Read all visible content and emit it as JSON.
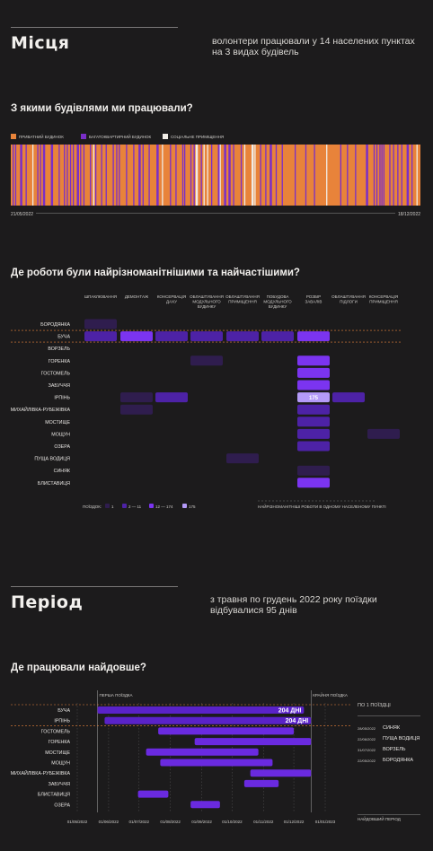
{
  "places": {
    "title": "Місця",
    "description_line1": "волонтери працювали у 14 населених пунктах",
    "description_line2": "на 3 видах будівель"
  },
  "buildings": {
    "question": "З якими будівлями ми працювали?",
    "legend": [
      {
        "label": "ПРИВАТНИЙ БУДИНОК",
        "color": "#e8833a"
      },
      {
        "label": "БАГАТОКВАРТИРНИЙ БУДИНОК",
        "color": "#7a2ec8"
      },
      {
        "label": "СОЦІАЛЬНЕ ПРИМІЩЕННЯ",
        "color": "#f0ece6"
      }
    ],
    "start_date": "21/05/2022",
    "end_date": "18/12/2022"
  },
  "works": {
    "question": "Де роботи були найрізноманітнішими та найчастішими?",
    "legend_title": "ПОЇЗДОК:",
    "legend_levels": [
      "1",
      "2 — 11",
      "12 — 174",
      "175"
    ],
    "legend_note": "НАЙРІЗНОМАНІТНІШІ РОБОТИ В ОДНОМУ НАСЕЛЕНОМУ ПУНКТІ"
  },
  "period": {
    "title": "Період",
    "description_line1": "з травня по грудень 2022 року поїздки",
    "description_line2": "відбувалися 95 днів"
  },
  "longest": {
    "question": "Де працювали найдовше?",
    "first_trip_label": "ПЕРША ПОЇЗДКА",
    "last_trip_label": "КРАЙНЯ ПОЇЗДКА",
    "one_trip_title": "ПО 1 ПОЇЗДЦІ",
    "one_trip_items": [
      {
        "date": "28/05/2022",
        "place": "СИНЯК"
      },
      {
        "date": "22/06/2022",
        "place": "ПУЩА ВОДИЦЯ"
      },
      {
        "date": "31/07/2022",
        "place": "ВОРЗЕЛЬ"
      },
      {
        "date": "22/05/2022",
        "place": "БОРОДЯНКА"
      }
    ],
    "longest_period_label": "НАЙДОВШИЙ ПЕРІОД"
  },
  "chart_data": [
    {
      "type": "heatmap",
      "title": "Де роботи були найрізноманітнішими та найчастішими?",
      "columns": [
        "ШПАКЛЮВАННЯ",
        "ДЕМОНТАЖ",
        "КОНСЕРВАЦІЯ ДАХУ",
        "ОБЛАШТУВАННЯ МОДУЛЬНОГО БУДИНКУ",
        "ОБЛАШТУВАННЯ ПРИМІЩЕННЯ",
        "ПОБУДОВА МОДУЛЬНОГО БУДИНКУ",
        "РОЗБІР ЗАВАЛІВ",
        "ОБЛАШТУВАННЯ ПІДЛОГИ",
        "КОНСЕРВАЦІЯ ПРИМІЩЕННЯ"
      ],
      "rows": [
        "БОРОДЯНКА",
        "БУЧА",
        "ВОРЗЕЛЬ",
        "ГОРЕНКА",
        "ГОСТОМЕЛЬ",
        "ЗАБУЧЧЯ",
        "ІРПІНЬ",
        "МИХАЙЛІВКА-РУБЕЖІВКА",
        "МОСТИЩЕ",
        "МОЩУН",
        "ОЗЕРА",
        "ПУЩА ВОДИЦЯ",
        "СИНЯК",
        "БЛИСТАВИЦЯ"
      ],
      "cells": [
        {
          "row": 0,
          "col": 0,
          "level": 1
        },
        {
          "row": 1,
          "col": 0,
          "level": 2
        },
        {
          "row": 1,
          "col": 1,
          "level": 3
        },
        {
          "row": 1,
          "col": 2,
          "level": 2
        },
        {
          "row": 1,
          "col": 3,
          "level": 2
        },
        {
          "row": 1,
          "col": 4,
          "level": 2
        },
        {
          "row": 1,
          "col": 5,
          "level": 2
        },
        {
          "row": 1,
          "col": 6,
          "level": 3
        },
        {
          "row": 3,
          "col": 3,
          "level": 1
        },
        {
          "row": 3,
          "col": 6,
          "level": 3
        },
        {
          "row": 4,
          "col": 6,
          "level": 3
        },
        {
          "row": 5,
          "col": 6,
          "level": 3
        },
        {
          "row": 6,
          "col": 1,
          "level": 1
        },
        {
          "row": 6,
          "col": 2,
          "level": 2
        },
        {
          "row": 6,
          "col": 6,
          "level": 4,
          "label": "175"
        },
        {
          "row": 6,
          "col": 7,
          "level": 2
        },
        {
          "row": 7,
          "col": 1,
          "level": 1
        },
        {
          "row": 7,
          "col": 6,
          "level": 2
        },
        {
          "row": 8,
          "col": 6,
          "level": 2
        },
        {
          "row": 9,
          "col": 6,
          "level": 2
        },
        {
          "row": 9,
          "col": 8,
          "level": 1
        },
        {
          "row": 10,
          "col": 6,
          "level": 2
        },
        {
          "row": 11,
          "col": 4,
          "level": 1
        },
        {
          "row": 12,
          "col": 6,
          "level": 1
        },
        {
          "row": 13,
          "col": 6,
          "level": 3
        }
      ],
      "highlighted_rows": [
        "БУЧА"
      ]
    },
    {
      "type": "bar",
      "title": "Де працювали найдовше?",
      "categories": [
        "БУЧА",
        "ІРПІНЬ",
        "ГОСТОМЕЛЬ",
        "ГОРЕНКА",
        "МОСТИЩЕ",
        "МОЩУН",
        "МИХАЙЛІВКА-РУБЕЖІВКА",
        "ЗАБУЧЧЯ",
        "БЛИСТАВИЦЯ",
        "ОЗЕРА"
      ],
      "ranges": [
        {
          "start": "2022-05-21",
          "end": "2022-12-11",
          "label": "204 ДНІ"
        },
        {
          "start": "2022-05-28",
          "end": "2022-12-18",
          "label": "204 ДНІ"
        },
        {
          "start": "2022-07-20",
          "end": "2022-12-01"
        },
        {
          "start": "2022-08-25",
          "end": "2022-12-18"
        },
        {
          "start": "2022-07-08",
          "end": "2022-10-27"
        },
        {
          "start": "2022-07-22",
          "end": "2022-11-10"
        },
        {
          "start": "2022-10-19",
          "end": "2022-12-18"
        },
        {
          "start": "2022-10-13",
          "end": "2022-11-16"
        },
        {
          "start": "2022-06-30",
          "end": "2022-07-30"
        },
        {
          "start": "2022-08-21",
          "end": "2022-09-19"
        }
      ],
      "x_ticks": [
        "01/05/2022",
        "01/06/2022",
        "01/07/2022",
        "01/08/2022",
        "01/09/2022",
        "01/10/2022",
        "01/11/2022",
        "01/12/2022",
        "01/01/2023"
      ],
      "xlim": [
        "2022-05-01",
        "2023-01-01"
      ]
    }
  ]
}
